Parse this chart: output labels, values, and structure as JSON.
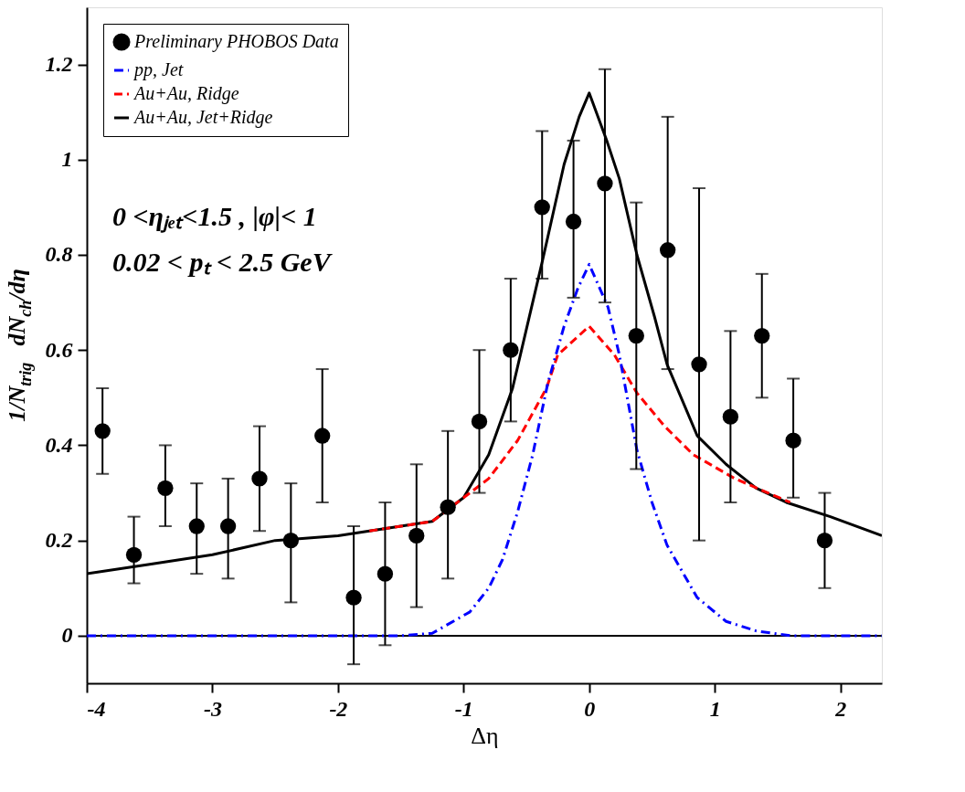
{
  "chart_data": {
    "type": "scatter",
    "xlabel": "Δη",
    "ylabel": "1/N$_{trig}$ dN$_{ch}$/dη",
    "xlim": [
      -4,
      2.33
    ],
    "ylim": [
      -0.1,
      1.32
    ],
    "xticks": [
      -4,
      -3,
      -2,
      -1,
      0,
      1,
      2
    ],
    "yticks": [
      0,
      0.2,
      0.4,
      0.6,
      0.8,
      1,
      1.2
    ],
    "legend": "top left",
    "grid": false,
    "ref_lines": [
      {
        "axis": "y",
        "value": 0,
        "color": "#000000"
      }
    ],
    "annotations": [
      "0 <ηⱼₑₜ<1.5 , |φ|< 1",
      "0.02 < pₜ < 2.5 GeV"
    ],
    "series": [
      {
        "name": "Preliminary PHOBOS Data",
        "type": "scatter",
        "marker": "circle",
        "color": "#000000",
        "x": [
          -3.875,
          -3.625,
          -3.375,
          -3.125,
          -2.875,
          -2.625,
          -2.375,
          -2.125,
          -1.875,
          -1.625,
          -1.375,
          -1.125,
          -0.875,
          -0.625,
          -0.375,
          -0.125,
          0.125,
          0.375,
          0.625,
          0.875,
          1.125,
          1.375,
          1.625,
          1.875
        ],
        "values": [
          0.43,
          0.17,
          0.31,
          0.23,
          0.23,
          0.33,
          0.2,
          0.42,
          0.08,
          0.13,
          0.21,
          0.27,
          0.45,
          0.6,
          0.9,
          0.87,
          0.95,
          0.63,
          0.81,
          0.57,
          0.46,
          0.63,
          0.41,
          0.2
        ],
        "errors": [
          [
            0.34,
            0.52
          ],
          [
            0.11,
            0.25
          ],
          [
            0.23,
            0.4
          ],
          [
            0.13,
            0.32
          ],
          [
            0.12,
            0.33
          ],
          [
            0.22,
            0.44
          ],
          [
            0.07,
            0.32
          ],
          [
            0.28,
            0.56
          ],
          [
            -0.06,
            0.23
          ],
          [
            -0.02,
            0.28
          ],
          [
            0.06,
            0.36
          ],
          [
            0.12,
            0.43
          ],
          [
            0.3,
            0.6
          ],
          [
            0.45,
            0.75
          ],
          [
            0.75,
            1.06
          ],
          [
            0.71,
            1.04
          ],
          [
            0.7,
            1.19
          ],
          [
            0.35,
            0.91
          ],
          [
            0.56,
            1.09
          ],
          [
            0.2,
            0.94
          ],
          [
            0.28,
            0.64
          ],
          [
            0.5,
            0.76
          ],
          [
            0.29,
            0.54
          ],
          [
            0.1,
            0.3
          ]
        ]
      },
      {
        "name": "pp, Jet",
        "type": "line",
        "color": "#0000ff",
        "line_style": "dashdot",
        "x": [
          -4,
          -1.5,
          -1.25,
          -0.95,
          -0.8,
          -0.69,
          -0.57,
          -0.45,
          -0.33,
          -0.2,
          -0.09,
          0,
          0.15,
          0.24,
          0.38,
          0.5,
          0.62,
          0.86,
          1.09,
          1.33,
          1.6,
          2.33
        ],
        "values": [
          0,
          0,
          0.005,
          0.05,
          0.1,
          0.16,
          0.26,
          0.38,
          0.53,
          0.65,
          0.73,
          0.78,
          0.69,
          0.59,
          0.39,
          0.28,
          0.19,
          0.08,
          0.03,
          0.01,
          0,
          0
        ]
      },
      {
        "name": "Au+Au, Ridge",
        "type": "line",
        "color": "#ff0000",
        "line_style": "dashed",
        "x": [
          -1.75,
          -1.25,
          -1.0,
          -0.8,
          -0.57,
          -0.34,
          -0.25,
          0,
          0.2,
          0.38,
          0.6,
          0.83,
          1.16,
          1.6
        ],
        "values": [
          0.22,
          0.24,
          0.29,
          0.33,
          0.41,
          0.52,
          0.59,
          0.65,
          0.59,
          0.51,
          0.44,
          0.38,
          0.33,
          0.28
        ]
      },
      {
        "name": "Au+Au, Jet+Ridge",
        "type": "line",
        "color": "#000000",
        "line_style": "solid",
        "x": [
          -4,
          -3.5,
          -3,
          -2.5,
          -2,
          -1.5,
          -1.25,
          -1.0,
          -0.8,
          -0.61,
          -0.37,
          -0.2,
          -0.08,
          0,
          0.14,
          0.24,
          0.38,
          0.52,
          0.62,
          0.86,
          1.09,
          1.33,
          1.57,
          1.92,
          2.33
        ],
        "values": [
          0.13,
          0.15,
          0.17,
          0.2,
          0.21,
          0.23,
          0.24,
          0.29,
          0.38,
          0.52,
          0.79,
          0.99,
          1.09,
          1.14,
          1.04,
          0.96,
          0.8,
          0.67,
          0.57,
          0.42,
          0.36,
          0.31,
          0.28,
          0.25,
          0.21
        ]
      }
    ]
  }
}
